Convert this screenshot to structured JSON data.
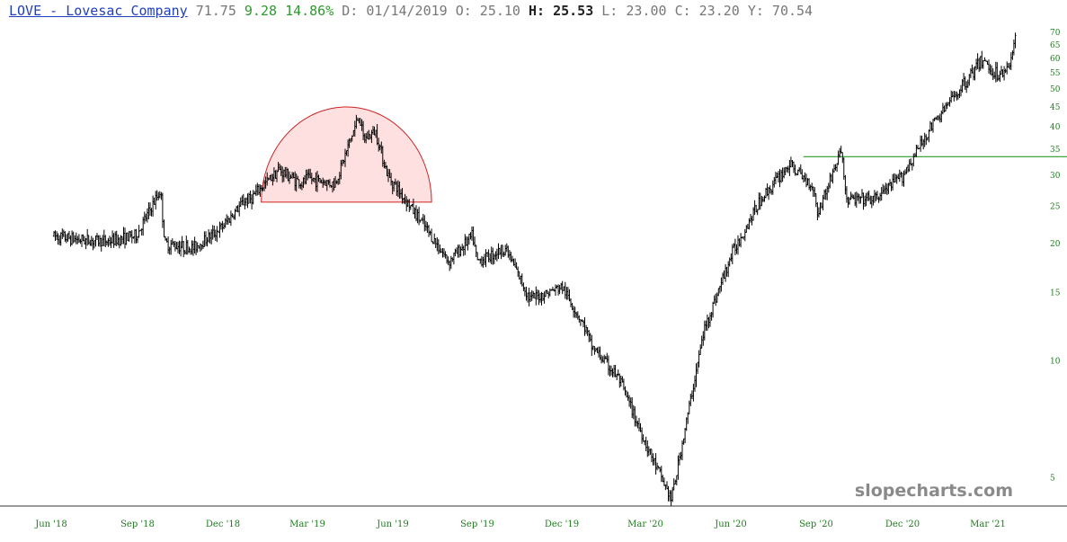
{
  "header": {
    "ticker_label": "LOVE - Lovesac Company",
    "last": "71.75",
    "change": "9.28",
    "change_pct": "14.86%",
    "date_label": "D: 01/14/2019",
    "open_label": "O: 25.10",
    "high_prefix": "H:",
    "high_value": "25.53",
    "low_label": "L: 23.00",
    "close_label": "C: 23.20",
    "y_label": "Y: 70.54"
  },
  "watermark": "slopecharts.com",
  "colors": {
    "bars": "#000000",
    "shape_fill": "#ffd6d6",
    "shape_stroke": "#cc2222",
    "trendline": "#2a9a2a",
    "tick_text": "#1e7b1e",
    "axis": "#333333"
  },
  "chart_data": {
    "type": "ohlc",
    "scale": "log",
    "ylim": [
      4.3,
      73
    ],
    "y_ticks": [
      "5",
      "10",
      "15",
      "20",
      "25",
      "30",
      "35",
      "40",
      "45",
      "50",
      "55",
      "60",
      "65",
      "70"
    ],
    "x_ticks": [
      "Jun '18",
      "Sep '18",
      "Dec '18",
      "Mar '19",
      "Jun '19",
      "Sep '19",
      "Dec '19",
      "Mar '20",
      "Jun '20",
      "Sep '20",
      "Dec '20",
      "Mar '21"
    ],
    "price_path": [
      [
        "Jun '18",
        21
      ],
      [
        "Jul '18",
        20.5
      ],
      [
        "Aug '18",
        20.3
      ],
      [
        "Sep '18",
        21
      ],
      [
        "Sep '18",
        27.5
      ],
      [
        "Oct '18",
        20
      ],
      [
        "Nov '18",
        19.5
      ],
      [
        "Dec '18",
        22
      ],
      [
        "Dec '18",
        26
      ],
      [
        "Jan '19",
        26
      ],
      [
        "Feb '19",
        31
      ],
      [
        "Feb '19",
        28.5
      ],
      [
        "Mar '19",
        29.5
      ],
      [
        "Apr '19",
        28.5
      ],
      [
        "Apr '19",
        43
      ],
      [
        "May '19",
        37
      ],
      [
        "May '19",
        39
      ],
      [
        "May '19",
        30
      ],
      [
        "Jun '19",
        29
      ],
      [
        "Jul '19",
        23
      ],
      [
        "Aug '19",
        18
      ],
      [
        "Aug '19",
        21
      ],
      [
        "Sep '19",
        18
      ],
      [
        "Oct '19",
        19.5
      ],
      [
        "Oct '19",
        14.5
      ],
      [
        "Nov '19",
        14.5
      ],
      [
        "Dec '19",
        15.5
      ],
      [
        "Dec '19",
        12
      ],
      [
        "Jan '20",
        11
      ],
      [
        "Feb '20",
        9
      ],
      [
        "Mar '20",
        6
      ],
      [
        "Mar '20",
        4.4
      ],
      [
        "Apr '20",
        5
      ],
      [
        "May '20",
        12
      ],
      [
        "Jun '20",
        19
      ],
      [
        "Jul '20",
        26
      ],
      [
        "Aug '20",
        32
      ],
      [
        "Aug '20",
        28
      ],
      [
        "Sep '20",
        24
      ],
      [
        "Sep '20",
        35
      ],
      [
        "Oct '20",
        26
      ],
      [
        "Nov '20",
        26
      ],
      [
        "Dec '20",
        30
      ],
      [
        "Jan '21",
        40
      ],
      [
        "Feb '21",
        50
      ],
      [
        "Feb '21",
        60
      ],
      [
        "Mar '21",
        57
      ],
      [
        "Mar '21",
        54
      ],
      [
        "Mar '21",
        60
      ],
      [
        "Apr '21",
        71.75
      ]
    ],
    "annotations": [
      {
        "type": "rounding-top",
        "base_price": 25.6,
        "from": "Jan '19",
        "to": "Jul '19",
        "peak_price": 45
      },
      {
        "type": "horizontal-line",
        "price": 33.5,
        "from": "Aug '20",
        "to": "Apr '21"
      }
    ]
  }
}
